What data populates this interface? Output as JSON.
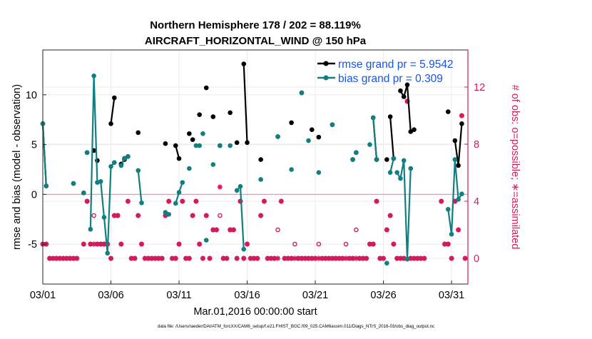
{
  "title_line1": "Northern Hemisphere 178 / 202 = 88.119%",
  "title_line2": "AIRCRAFT_HORIZONTAL_WIND @ 150 hPa",
  "ylabel_left": "rmse and bias (model - observation)",
  "ylabel_right": "# of obs: o=possible; ∗=assimilated",
  "xlabel": "Mar.01,2016 00:00:00 start",
  "footer": "data file: /Users/raeder/DAI/ATM_forcXX/CAM6_setup/f.e21.FHIST_BGC.f09_025.CAM6assim.011/Diags_NTrS_2016-03/obs_diag_output.nc",
  "colors": {
    "rmse": "#000000",
    "bias": "#0f7f7f",
    "count": "#d6195c",
    "legend_text": "#1a54e0",
    "zero_line": "#c9a8b0",
    "grid": "#ebebeb"
  },
  "chart_data": {
    "type": "line",
    "xlim": [
      0,
      31.2
    ],
    "xticks": [
      0,
      5,
      10,
      15,
      20,
      25,
      30
    ],
    "xtick_labels": [
      "03/01",
      "03/06",
      "03/11",
      "03/16",
      "03/21",
      "03/26",
      "03/31"
    ],
    "ylim": [
      -9,
      14.5
    ],
    "yticks": [
      -5,
      0,
      5,
      10
    ],
    "ytick_labels": [
      "-5",
      "0",
      "5",
      "10"
    ],
    "y2lim": [
      -1.8,
      14.6
    ],
    "y2ticks": [
      0,
      4,
      8,
      12
    ],
    "y2tick_labels": [
      "0",
      "4",
      "8",
      "12"
    ],
    "grid": true,
    "legend_position": "top-right",
    "legend": [
      {
        "key": "rmse",
        "label": "rmse grand pr = 5.9542"
      },
      {
        "key": "bias",
        "label": "bias grand pr = 0.309"
      }
    ],
    "rmse": [
      [
        [
          0.0,
          7.1
        ],
        [
          0.25,
          0.85
        ]
      ],
      [
        [
          2.25,
          1.1
        ]
      ],
      [
        [
          3.0,
          0.15
        ]
      ],
      [
        [
          3.25,
          4.2
        ]
      ],
      [
        [
          3.75,
          4.4
        ]
      ],
      [
        [
          4.0,
          3.4
        ]
      ],
      [
        [
          5.0,
          7.1
        ],
        [
          5.25,
          9.7
        ]
      ],
      [
        [
          5.75,
          3.05
        ],
        [
          6.0,
          3.5
        ],
        [
          6.25,
          3.8
        ]
      ],
      [
        [
          7.0,
          6.2
        ]
      ],
      [
        [
          9.0,
          5.1
        ]
      ],
      [
        [
          9.75,
          4.9
        ],
        [
          10.0,
          3.6
        ]
      ],
      [
        [
          10.75,
          6.1
        ]
      ],
      [
        [
          11.0,
          5.5
        ]
      ],
      [
        [
          11.5,
          8.0
        ]
      ],
      [
        [
          12.0,
          10.7
        ]
      ],
      [
        [
          12.5,
          7.8
        ]
      ],
      [
        [
          13.0,
          4.9
        ]
      ],
      [
        [
          13.75,
          8.2
        ]
      ],
      [
        [
          14.25,
          5.2
        ]
      ],
      [
        [
          14.75,
          13.1
        ],
        [
          15.0,
          5.2
        ]
      ],
      [
        [
          16.0,
          3.5
        ]
      ],
      [
        [
          17.25,
          5.8
        ]
      ],
      [
        [
          18.25,
          7.2
        ]
      ],
      [
        [
          19.0,
          10.2
        ]
      ],
      [
        [
          19.75,
          6.5
        ]
      ],
      [
        [
          20.25,
          5.75
        ]
      ],
      [
        [
          21.25,
          7.0
        ]
      ],
      [
        [
          22.75,
          3.5
        ]
      ],
      [
        [
          23.0,
          4.2
        ]
      ],
      [
        [
          24.25,
          7.7
        ],
        [
          24.5,
          3.5
        ]
      ],
      [
        [
          25.25,
          3.5
        ]
      ],
      [
        [
          25.5,
          7.8
        ],
        [
          25.75,
          3.6
        ]
      ],
      [
        [
          26.25,
          10.4
        ],
        [
          26.5,
          9.8
        ],
        [
          26.75,
          11.0
        ],
        [
          27.0,
          6.3
        ],
        [
          27.25,
          6.5
        ]
      ],
      [
        [
          29.75,
          8.3
        ]
      ],
      [
        [
          30.25,
          5.4
        ],
        [
          30.5,
          2.9
        ],
        [
          30.75,
          7.1
        ]
      ]
    ],
    "bias": [
      [
        [
          0.0,
          7.1
        ],
        [
          0.25,
          0.85
        ]
      ],
      [
        [
          2.25,
          1.1
        ]
      ],
      [
        [
          3.0,
          0.15
        ]
      ],
      [
        [
          3.25,
          4.2
        ]
      ],
      [
        [
          3.5,
          -3.5
        ],
        [
          3.75,
          11.9
        ],
        [
          4.0,
          1.2
        ],
        [
          4.25,
          1.3
        ],
        [
          4.5,
          -2.3
        ],
        [
          4.75,
          -5.9
        ],
        [
          5.0,
          2.8
        ],
        [
          5.25,
          3.2
        ]
      ],
      [
        [
          5.75,
          2.9
        ],
        [
          6.0,
          3.6
        ],
        [
          6.25,
          3.8
        ]
      ],
      [
        [
          7.0,
          2.4
        ],
        [
          7.25,
          -0.85
        ]
      ],
      [
        [
          9.0,
          -1.8
        ],
        [
          9.25,
          -2.0
        ]
      ],
      [
        [
          9.75,
          -0.9
        ],
        [
          10.0,
          0.2
        ],
        [
          10.25,
          1.2
        ]
      ],
      [
        [
          10.75,
          2.6
        ]
      ],
      [
        [
          11.25,
          4.9
        ],
        [
          11.5,
          4.9
        ]
      ],
      [
        [
          11.75,
          6.1
        ]
      ],
      [
        [
          12.0,
          -4.6
        ]
      ],
      [
        [
          12.5,
          3.0
        ]
      ],
      [
        [
          13.0,
          4.9
        ]
      ],
      [
        [
          13.75,
          4.9
        ]
      ],
      [
        [
          14.25,
          0.4
        ],
        [
          14.5,
          0.8
        ],
        [
          14.75,
          -5.5
        ]
      ],
      [
        [
          16.0,
          1.5
        ]
      ],
      [
        [
          17.25,
          5.8
        ]
      ],
      [
        [
          18.25,
          2.5
        ]
      ],
      [
        [
          19.0,
          10.2
        ]
      ],
      [
        [
          19.5,
          5.4
        ]
      ],
      [
        [
          20.25,
          2.2
        ]
      ],
      [
        [
          21.25,
          7.0
        ]
      ],
      [
        [
          22.75,
          3.5
        ]
      ],
      [
        [
          23.0,
          4.2
        ]
      ],
      [
        [
          24.0,
          5.0
        ]
      ],
      [
        [
          24.25,
          7.7
        ],
        [
          24.5,
          3.5
        ]
      ],
      [
        [
          25.25,
          -6.9
        ]
      ],
      [
        [
          25.5,
          2.2
        ],
        [
          25.75,
          3.6
        ]
      ],
      [
        [
          26.0,
          2.2
        ],
        [
          26.25,
          1.6
        ],
        [
          26.5,
          3.4
        ],
        [
          26.75,
          -6.5
        ],
        [
          27.0,
          2.6
        ]
      ],
      [
        [
          29.75,
          -1.5
        ],
        [
          30.0,
          -4.0
        ],
        [
          30.25,
          3.5
        ],
        [
          30.5,
          -0.5
        ],
        [
          30.75,
          0.05
        ]
      ]
    ],
    "obs_possible": [
      [
        0.0,
        1
      ],
      [
        0.25,
        1
      ],
      [
        0.5,
        0
      ],
      [
        0.75,
        0
      ],
      [
        1.0,
        0
      ],
      [
        1.25,
        0
      ],
      [
        1.5,
        0
      ],
      [
        1.75,
        0
      ],
      [
        2.0,
        0
      ],
      [
        2.25,
        0
      ],
      [
        2.5,
        0
      ],
      [
        3.0,
        1
      ],
      [
        3.25,
        4
      ],
      [
        3.5,
        1
      ],
      [
        3.75,
        3
      ],
      [
        4.0,
        1
      ],
      [
        4.25,
        1
      ],
      [
        4.5,
        1
      ],
      [
        4.75,
        1
      ],
      [
        5.0,
        0
      ],
      [
        5.25,
        3
      ],
      [
        5.5,
        3
      ],
      [
        5.75,
        1
      ],
      [
        6.0,
        7
      ],
      [
        6.25,
        4
      ],
      [
        6.5,
        0
      ],
      [
        6.75,
        0
      ],
      [
        7.0,
        3
      ],
      [
        7.25,
        1
      ],
      [
        7.5,
        0
      ],
      [
        7.75,
        0
      ],
      [
        8.0,
        0
      ],
      [
        8.25,
        0
      ],
      [
        8.5,
        0
      ],
      [
        8.75,
        0
      ],
      [
        9.0,
        3
      ],
      [
        9.25,
        4
      ],
      [
        9.5,
        0
      ],
      [
        9.75,
        0
      ],
      [
        10.0,
        1
      ],
      [
        10.25,
        4
      ],
      [
        10.5,
        0
      ],
      [
        10.75,
        0
      ],
      [
        11.0,
        3
      ],
      [
        11.25,
        4
      ],
      [
        11.5,
        1
      ],
      [
        11.75,
        0
      ],
      [
        12.0,
        3
      ],
      [
        12.25,
        0
      ],
      [
        12.5,
        2
      ],
      [
        12.75,
        2
      ],
      [
        13.0,
        3
      ],
      [
        13.25,
        0
      ],
      [
        13.5,
        0
      ],
      [
        13.75,
        2
      ],
      [
        14.0,
        2
      ],
      [
        14.25,
        0
      ],
      [
        14.5,
        4
      ],
      [
        14.75,
        0
      ],
      [
        15.0,
        1
      ],
      [
        15.25,
        0
      ],
      [
        15.5,
        0
      ],
      [
        15.75,
        0
      ],
      [
        16.0,
        3
      ],
      [
        16.25,
        4
      ],
      [
        16.5,
        0
      ],
      [
        16.75,
        0
      ],
      [
        17.0,
        0
      ],
      [
        17.25,
        2
      ],
      [
        17.5,
        4
      ],
      [
        17.75,
        0
      ],
      [
        18.0,
        0
      ],
      [
        18.25,
        0
      ],
      [
        18.5,
        1
      ],
      [
        18.75,
        0
      ],
      [
        19.0,
        0
      ],
      [
        19.25,
        0
      ],
      [
        19.5,
        0
      ],
      [
        19.75,
        0
      ],
      [
        20.0,
        0
      ],
      [
        20.25,
        1
      ],
      [
        20.5,
        0
      ],
      [
        20.75,
        0
      ],
      [
        21.0,
        0
      ],
      [
        21.25,
        0
      ],
      [
        21.5,
        0
      ],
      [
        21.75,
        0
      ],
      [
        22.0,
        0
      ],
      [
        22.25,
        1
      ],
      [
        22.5,
        0
      ],
      [
        22.75,
        0
      ],
      [
        23.0,
        2
      ],
      [
        23.25,
        0
      ],
      [
        23.5,
        0
      ],
      [
        23.75,
        0
      ],
      [
        24.0,
        1
      ],
      [
        24.25,
        1
      ],
      [
        24.5,
        4
      ],
      [
        24.75,
        0
      ],
      [
        25.0,
        0
      ],
      [
        25.25,
        2
      ],
      [
        25.5,
        3
      ],
      [
        25.75,
        1
      ],
      [
        26.0,
        0
      ],
      [
        26.25,
        0
      ],
      [
        26.5,
        0
      ],
      [
        26.75,
        11
      ],
      [
        27.0,
        0
      ],
      [
        27.25,
        0
      ],
      [
        27.5,
        0
      ],
      [
        27.75,
        0
      ],
      [
        28.0,
        0
      ],
      [
        29.25,
        4
      ],
      [
        29.5,
        1
      ],
      [
        29.75,
        1
      ],
      [
        30.0,
        0
      ],
      [
        30.25,
        4
      ],
      [
        30.5,
        2
      ],
      [
        30.75,
        10
      ],
      [
        31.0,
        0
      ]
    ],
    "obs_assimilated": [
      [
        0.0,
        1
      ],
      [
        0.25,
        1
      ],
      [
        0.5,
        0
      ],
      [
        0.75,
        0
      ],
      [
        1.0,
        0
      ],
      [
        1.25,
        0
      ],
      [
        1.5,
        0
      ],
      [
        1.75,
        0
      ],
      [
        2.0,
        0
      ],
      [
        2.25,
        0
      ],
      [
        2.5,
        0
      ],
      [
        3.0,
        1
      ],
      [
        3.25,
        4
      ],
      [
        3.5,
        1
      ],
      [
        3.75,
        1
      ],
      [
        4.0,
        1
      ],
      [
        4.25,
        1
      ],
      [
        4.5,
        1
      ],
      [
        4.75,
        1
      ],
      [
        5.0,
        0
      ],
      [
        5.25,
        3
      ],
      [
        5.5,
        3
      ],
      [
        5.75,
        1
      ],
      [
        6.0,
        7
      ],
      [
        6.25,
        4
      ],
      [
        6.5,
        0
      ],
      [
        6.75,
        0
      ],
      [
        7.0,
        3
      ],
      [
        7.25,
        1
      ],
      [
        7.5,
        0
      ],
      [
        7.75,
        0
      ],
      [
        8.0,
        0
      ],
      [
        8.25,
        0
      ],
      [
        8.5,
        0
      ],
      [
        8.75,
        0
      ],
      [
        9.0,
        3
      ],
      [
        9.25,
        4
      ],
      [
        9.5,
        0
      ],
      [
        9.75,
        0
      ],
      [
        10.0,
        1
      ],
      [
        10.25,
        4
      ],
      [
        10.5,
        0
      ],
      [
        10.75,
        0
      ],
      [
        11.0,
        3
      ],
      [
        11.25,
        4
      ],
      [
        11.5,
        1
      ],
      [
        11.75,
        0
      ],
      [
        12.0,
        3
      ],
      [
        12.25,
        0
      ],
      [
        12.5,
        2
      ],
      [
        12.75,
        2
      ],
      [
        13.0,
        5
      ],
      [
        13.25,
        0
      ],
      [
        13.5,
        0
      ],
      [
        13.75,
        2
      ],
      [
        14.0,
        2
      ],
      [
        14.25,
        0
      ],
      [
        14.5,
        4
      ],
      [
        14.75,
        0
      ],
      [
        15.0,
        1
      ],
      [
        15.25,
        0
      ],
      [
        15.5,
        0
      ],
      [
        15.75,
        0
      ],
      [
        16.0,
        3
      ],
      [
        16.25,
        4
      ],
      [
        16.5,
        0
      ],
      [
        16.75,
        0
      ],
      [
        17.0,
        0
      ],
      [
        17.25,
        0
      ],
      [
        17.5,
        4
      ],
      [
        17.75,
        0
      ],
      [
        18.0,
        0
      ],
      [
        18.25,
        0
      ],
      [
        18.5,
        0
      ],
      [
        18.75,
        0
      ],
      [
        19.0,
        0
      ],
      [
        19.25,
        0
      ],
      [
        19.5,
        0
      ],
      [
        19.75,
        0
      ],
      [
        20.0,
        0
      ],
      [
        20.25,
        0
      ],
      [
        20.5,
        0
      ],
      [
        20.75,
        0
      ],
      [
        21.0,
        0
      ],
      [
        21.25,
        0
      ],
      [
        21.5,
        0
      ],
      [
        21.75,
        0
      ],
      [
        22.0,
        0
      ],
      [
        22.25,
        0
      ],
      [
        22.5,
        0
      ],
      [
        22.75,
        0
      ],
      [
        23.0,
        0
      ],
      [
        23.25,
        0
      ],
      [
        23.5,
        0
      ],
      [
        23.75,
        0
      ],
      [
        24.0,
        1
      ],
      [
        24.25,
        1
      ],
      [
        24.5,
        4
      ],
      [
        24.75,
        0
      ],
      [
        25.0,
        0
      ],
      [
        25.25,
        2
      ],
      [
        25.5,
        3
      ],
      [
        25.75,
        1
      ],
      [
        26.0,
        0
      ],
      [
        26.25,
        0
      ],
      [
        26.5,
        0
      ],
      [
        26.75,
        11
      ],
      [
        27.0,
        0
      ],
      [
        27.25,
        0
      ],
      [
        27.5,
        0
      ],
      [
        27.75,
        0
      ],
      [
        28.0,
        0
      ],
      [
        29.25,
        4
      ],
      [
        29.5,
        1
      ],
      [
        29.75,
        1
      ],
      [
        30.0,
        0
      ],
      [
        30.25,
        4
      ],
      [
        30.5,
        2
      ],
      [
        30.75,
        10
      ],
      [
        31.0,
        0
      ]
    ]
  }
}
